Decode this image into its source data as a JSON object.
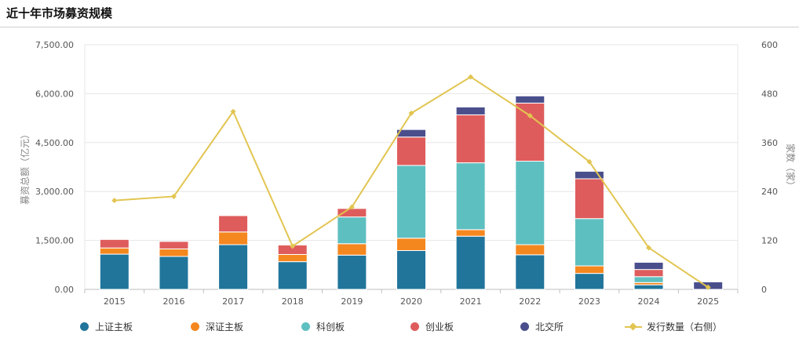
{
  "page": {
    "title": "近十年市场募资规模"
  },
  "chart_data": {
    "type": "bar",
    "stacked": true,
    "categories": [
      "2015",
      "2016",
      "2017",
      "2018",
      "2019",
      "2020",
      "2021",
      "2022",
      "2023",
      "2024",
      "2025"
    ],
    "series": [
      {
        "name": "上证主板",
        "color": "#21759b",
        "values": [
          1080,
          1010,
          1370,
          850,
          1050,
          1190,
          1630,
          1060,
          490,
          140,
          0
        ]
      },
      {
        "name": "深证主板",
        "color": "#f5871f",
        "values": [
          190,
          230,
          390,
          220,
          350,
          380,
          200,
          310,
          230,
          70,
          0
        ]
      },
      {
        "name": "科创板",
        "color": "#5ebfc0",
        "values": [
          0,
          0,
          0,
          0,
          820,
          2230,
          2050,
          2560,
          1450,
          180,
          0
        ]
      },
      {
        "name": "创业板",
        "color": "#df5c5c",
        "values": [
          260,
          230,
          500,
          290,
          260,
          870,
          1470,
          1780,
          1220,
          220,
          0
        ]
      },
      {
        "name": "北交所",
        "color": "#4a4f8c",
        "values": [
          0,
          0,
          0,
          0,
          0,
          230,
          240,
          220,
          230,
          220,
          230
        ]
      }
    ],
    "line_series": {
      "name": "发行数量（右侧）",
      "color": "#e2c551",
      "axis": "right",
      "values": [
        218,
        228,
        436,
        106,
        202,
        432,
        521,
        426,
        313,
        102,
        5
      ]
    },
    "ylabel": "募资总额（亿元）",
    "ylabel_right": "家数（家）",
    "ylim": [
      0,
      7500
    ],
    "ylim_right": [
      0,
      600
    ],
    "yticks": [
      "0.00",
      "1,500.00",
      "3,000.00",
      "4,500.00",
      "6,000.00",
      "7,500.00"
    ],
    "yticks_right": [
      "0",
      "120",
      "240",
      "360",
      "480",
      "600"
    ],
    "grid": true,
    "legend_position": "bottom"
  }
}
